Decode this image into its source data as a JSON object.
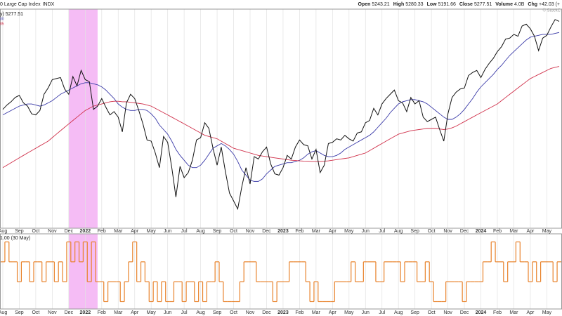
{
  "header": {
    "title": "0 Large Cap Index",
    "symbol": "INDX",
    "watermark": "© StockC",
    "quote": [
      {
        "label": "Open",
        "value": "5243.21"
      },
      {
        "label": "High",
        "value": "5280.33"
      },
      {
        "label": "Low",
        "value": "5191.66"
      },
      {
        "label": "Close",
        "value": "5277.51"
      },
      {
        "label": "Volume",
        "value": "4.0B"
      },
      {
        "label": "Chg",
        "value": "+42.03 (+"
      }
    ]
  },
  "chart_data": {
    "type": "line",
    "yscale": "log",
    "ylim": [
      3450,
      5400
    ],
    "y2lim": [
      -1.3,
      2.3
    ],
    "grid": true,
    "highlight": {
      "from": 16,
      "to": 23,
      "color": "#f2a6f2"
    },
    "categories": [
      "Aug",
      null,
      null,
      null,
      "Sep",
      null,
      null,
      null,
      "Oct",
      null,
      null,
      null,
      "Nov",
      null,
      null,
      null,
      "Dec",
      null,
      null,
      null,
      "2022",
      null,
      null,
      null,
      "Feb",
      null,
      null,
      null,
      "Mar",
      null,
      null,
      null,
      "Apr",
      null,
      null,
      null,
      "May",
      null,
      null,
      null,
      "Jun",
      null,
      null,
      null,
      "Jul",
      null,
      null,
      null,
      "Aug",
      null,
      null,
      null,
      "Sep",
      null,
      null,
      null,
      "Oct",
      null,
      null,
      null,
      "Nov",
      null,
      null,
      null,
      "Dec",
      null,
      null,
      null,
      "2023",
      null,
      null,
      null,
      "Feb",
      null,
      null,
      null,
      "Mar",
      null,
      null,
      null,
      "Apr",
      null,
      null,
      null,
      "May",
      null,
      null,
      null,
      "Jun",
      null,
      null,
      null,
      "Jul",
      null,
      null,
      null,
      "Aug",
      null,
      null,
      null,
      "Sep",
      null,
      null,
      null,
      "Oct",
      null,
      null,
      null,
      "Nov",
      null,
      null,
      null,
      "Dec",
      null,
      null,
      null,
      "2024",
      null,
      null,
      null,
      "Feb",
      null,
      null,
      null,
      "Mar",
      null,
      null,
      null,
      "Apr",
      null,
      null,
      null,
      "May",
      null,
      null,
      null
    ],
    "series": [
      {
        "name": "y) 5277.51",
        "color": "#111111",
        "values": [
          4400,
          4440,
          4470,
          4510,
          4530,
          4460,
          4430,
          4360,
          4350,
          4390,
          4540,
          4600,
          4680,
          4690,
          4700,
          4590,
          4540,
          4710,
          4620,
          4770,
          4680,
          4660,
          4400,
          4430,
          4500,
          4420,
          4350,
          4380,
          4330,
          4200,
          4460,
          4540,
          4500,
          4390,
          4270,
          4130,
          4120,
          4020,
          3900,
          4160,
          4110,
          3900,
          3670,
          3910,
          3820,
          3860,
          3960,
          4130,
          4150,
          4280,
          4230,
          4060,
          3920,
          4070,
          3870,
          3700,
          3640,
          3580,
          3750,
          3900,
          3770,
          3990,
          3970,
          4030,
          4070,
          3930,
          3850,
          3840,
          3900,
          4000,
          3970,
          4070,
          4130,
          4090,
          4080,
          3970,
          4050,
          3860,
          3920,
          4100,
          4110,
          4140,
          4130,
          4170,
          4140,
          4120,
          4190,
          4200,
          4280,
          4300,
          4410,
          4350,
          4450,
          4500,
          4540,
          4580,
          4480,
          4460,
          4380,
          4510,
          4450,
          4480,
          4330,
          4290,
          4310,
          4330,
          4220,
          4120,
          4360,
          4510,
          4560,
          4590,
          4600,
          4720,
          4750,
          4770,
          4700,
          4780,
          4840,
          4890,
          4960,
          5010,
          5090,
          5100,
          5140,
          5120,
          5230,
          5250,
          5200,
          5120,
          4970,
          5100,
          5130,
          5220,
          5300,
          5280
        ]
      },
      {
        "name": "00",
        "color": "#3a3aa8",
        "values": [
          4350,
          4370,
          4390,
          4410,
          4430,
          4440,
          4450,
          4450,
          4440,
          4430,
          4440,
          4460,
          4480,
          4510,
          4540,
          4560,
          4580,
          4600,
          4620,
          4640,
          4650,
          4650,
          4640,
          4630,
          4610,
          4580,
          4540,
          4500,
          4450,
          4420,
          4400,
          4390,
          4390,
          4400,
          4400,
          4390,
          4360,
          4320,
          4260,
          4220,
          4180,
          4120,
          4050,
          4000,
          3960,
          3920,
          3900,
          3900,
          3920,
          3960,
          4010,
          4060,
          4080,
          4100,
          4080,
          4050,
          4010,
          3950,
          3880,
          3840,
          3800,
          3790,
          3790,
          3810,
          3850,
          3880,
          3910,
          3920,
          3930,
          3940,
          3940,
          3950,
          3960,
          3980,
          4010,
          4030,
          4040,
          4020,
          4000,
          3990,
          3990,
          4000,
          4020,
          4050,
          4070,
          4090,
          4110,
          4130,
          4150,
          4170,
          4200,
          4240,
          4280,
          4320,
          4370,
          4410,
          4450,
          4470,
          4480,
          4490,
          4490,
          4480,
          4470,
          4450,
          4420,
          4390,
          4360,
          4330,
          4310,
          4310,
          4330,
          4360,
          4400,
          4450,
          4500,
          4560,
          4610,
          4650,
          4690,
          4730,
          4780,
          4820,
          4870,
          4920,
          4960,
          5000,
          5040,
          5080,
          5110,
          5120,
          5130,
          5140,
          5140,
          5140,
          5150,
          5160
        ]
      },
      {
        "name": "85",
        "color": "#d0304a",
        "values": [
          3900,
          3920,
          3940,
          3960,
          3980,
          4000,
          4020,
          4040,
          4060,
          4080,
          4100,
          4120,
          4150,
          4180,
          4210,
          4240,
          4270,
          4300,
          4330,
          4360,
          4390,
          4410,
          4430,
          4440,
          4450,
          4460,
          4470,
          4475,
          4475,
          4470,
          4470,
          4465,
          4460,
          4455,
          4450,
          4440,
          4430,
          4410,
          4390,
          4370,
          4350,
          4330,
          4310,
          4290,
          4270,
          4250,
          4230,
          4210,
          4190,
          4170,
          4160,
          4150,
          4140,
          4120,
          4100,
          4080,
          4060,
          4050,
          4040,
          4030,
          4020,
          4010,
          4000,
          3995,
          3990,
          3985,
          3980,
          3975,
          3970,
          3965,
          3960,
          3958,
          3955,
          3953,
          3952,
          3950,
          3950,
          3950,
          3952,
          3955,
          3960,
          3965,
          3970,
          3975,
          3980,
          3990,
          4000,
          4010,
          4020,
          4040,
          4060,
          4080,
          4100,
          4120,
          4140,
          4160,
          4180,
          4190,
          4200,
          4210,
          4215,
          4220,
          4225,
          4230,
          4230,
          4230,
          4225,
          4220,
          4225,
          4235,
          4250,
          4270,
          4290,
          4310,
          4330,
          4350,
          4370,
          4390,
          4410,
          4430,
          4450,
          4480,
          4510,
          4540,
          4570,
          4600,
          4630,
          4660,
          4690,
          4710,
          4730,
          4750,
          4770,
          4790,
          4800,
          4810
        ]
      },
      {
        "name": "1.00 (30 May)",
        "color": "#e8822a",
        "axis": "y2",
        "values": [
          1,
          2,
          1,
          1,
          0,
          1,
          1,
          0,
          1,
          1,
          0,
          1,
          1,
          0,
          1,
          0,
          2,
          1,
          2,
          1,
          2,
          0,
          2,
          0,
          0,
          -1,
          0,
          0,
          0,
          -1,
          0,
          1,
          2,
          0,
          1,
          0,
          -1,
          0,
          -1,
          0,
          -1,
          -1,
          0,
          0,
          -1,
          0,
          0,
          -1,
          0,
          -1,
          0,
          0,
          1,
          0,
          -1,
          -1,
          -1,
          -1,
          0,
          1,
          1,
          1,
          0,
          0,
          0,
          0,
          -1,
          0,
          0,
          0,
          1,
          1,
          1,
          1,
          0,
          -1,
          0,
          -1,
          -1,
          -1,
          -1,
          0,
          0,
          0,
          0,
          1,
          0,
          0,
          1,
          1,
          1,
          0,
          0,
          1,
          1,
          1,
          1,
          0,
          1,
          1,
          1,
          0,
          0,
          1,
          0,
          -1,
          -1,
          -1,
          0,
          0,
          0,
          0,
          -1,
          0,
          0,
          0,
          0,
          1,
          1,
          2,
          1,
          1,
          0,
          1,
          1,
          2,
          1,
          1,
          0,
          1,
          0,
          1,
          1,
          1,
          0,
          1
        ]
      }
    ]
  }
}
